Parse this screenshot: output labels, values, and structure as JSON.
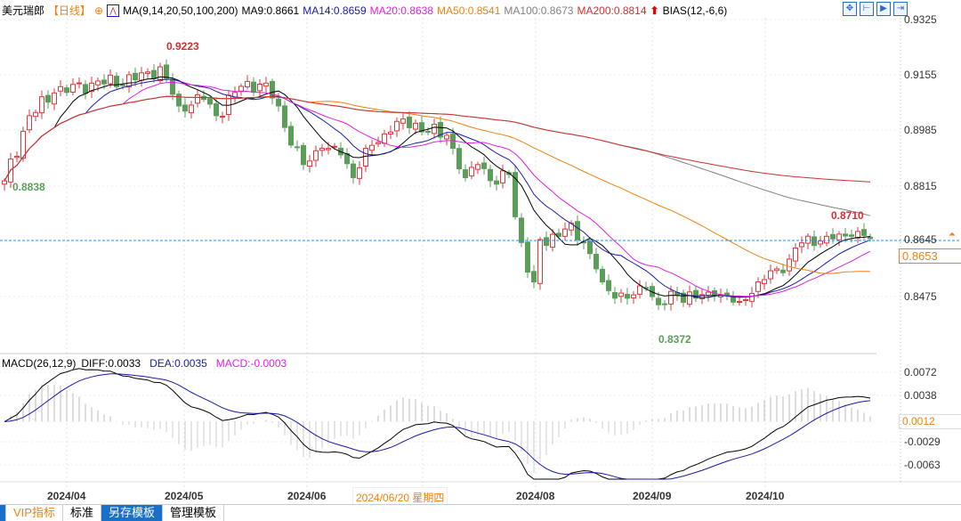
{
  "header": {
    "symbol": "美元瑞郎",
    "period": "【日线】",
    "ma_title": "MA(9,14,20,50,100,200)",
    "ma9": "MA9:0.8661",
    "ma14": "MA14:0.8659",
    "ma20": "MA20:0.8638",
    "ma50": "MA50:0.8541",
    "ma100": "MA100:0.8673",
    "ma200": "MA200:0.8814",
    "bias": "BIAS(12,-6,6)"
  },
  "macd_header": {
    "title": "MACD(26,12,9)",
    "diff": "DIFF:0.0033",
    "dea": "DEA:0.0035",
    "macd": "MACD:-0.0003"
  },
  "price_axis": [
    "0.9325",
    "0.9155",
    "0.8985",
    "0.8815",
    "0.8645",
    "0.8475"
  ],
  "current_price": "0.8653",
  "macd_axis": [
    "0.0072",
    "0.0038",
    "-0.0029",
    "-0.0063"
  ],
  "macd_current": "0.0012",
  "annotations": {
    "high": "0.9223",
    "start_low": "0.8838",
    "recent_high": "0.8710",
    "low": "0.8372"
  },
  "date_axis": [
    "2024/04",
    "2024/05",
    "2024/06",
    "2024/08",
    "2024/09",
    "2024/10"
  ],
  "crosshair_date": "2024/06/20 星期四",
  "tabs": [
    "VIP指标",
    "标准",
    "另存模板",
    "管理模板"
  ],
  "colors": {
    "up": "#e0383a",
    "down": "#5a9e5a",
    "ma9": "#000000",
    "ma14": "#1a1aa8",
    "ma20": "#e020e0",
    "ma50": "#f08010",
    "ma100": "#808080",
    "ma200": "#d03030",
    "price_line": "#1e90ff"
  },
  "chart_data": {
    "type": "candlestick",
    "title": "美元瑞郎 日线",
    "close_anchors": [
      [
        0,
        0.883
      ],
      [
        4,
        0.903
      ],
      [
        8,
        0.91
      ],
      [
        14,
        0.913
      ],
      [
        21,
        0.914
      ],
      [
        25,
        0.918
      ],
      [
        28,
        0.906
      ],
      [
        32,
        0.908
      ],
      [
        34,
        0.903
      ],
      [
        38,
        0.912
      ],
      [
        42,
        0.913
      ],
      [
        44,
        0.906
      ],
      [
        46,
        0.894
      ],
      [
        48,
        0.888
      ],
      [
        51,
        0.893
      ],
      [
        54,
        0.891
      ],
      [
        56,
        0.884
      ],
      [
        58,
        0.893
      ],
      [
        62,
        0.898
      ],
      [
        64,
        0.902
      ],
      [
        68,
        0.898
      ],
      [
        71,
        0.897
      ],
      [
        72,
        0.893
      ],
      [
        74,
        0.884
      ],
      [
        76,
        0.888
      ],
      [
        79,
        0.882
      ],
      [
        81,
        0.885
      ],
      [
        82,
        0.872
      ],
      [
        84,
        0.855
      ],
      [
        85,
        0.852
      ],
      [
        86,
        0.865
      ],
      [
        89,
        0.866
      ],
      [
        91,
        0.87
      ],
      [
        93,
        0.864
      ],
      [
        95,
        0.856
      ],
      [
        96,
        0.852
      ],
      [
        98,
        0.847
      ],
      [
        101,
        0.848
      ],
      [
        103,
        0.85
      ],
      [
        105,
        0.845
      ],
      [
        108,
        0.848
      ],
      [
        111,
        0.847
      ],
      [
        114,
        0.848
      ],
      [
        118,
        0.846
      ],
      [
        121,
        0.852
      ],
      [
        124,
        0.856
      ],
      [
        126,
        0.859
      ],
      [
        128,
        0.864
      ],
      [
        132,
        0.866
      ],
      [
        136,
        0.866
      ],
      [
        139,
        0.8653
      ]
    ],
    "ylim": [
      0.8372,
      0.9325
    ],
    "ma_periods": [
      9,
      14,
      20,
      50,
      100,
      200
    ]
  }
}
